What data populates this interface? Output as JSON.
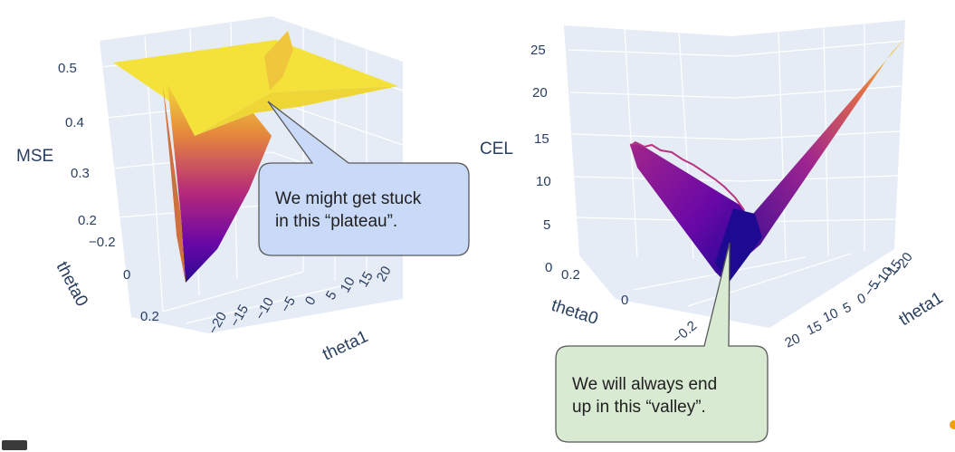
{
  "chart_data": [
    {
      "type": "surface",
      "z_axis_title": "MSE",
      "x_axis_title": "theta0",
      "y_axis_title": "theta1",
      "z_ticks": [
        "0.2",
        "0.3",
        "0.4",
        "0.5"
      ],
      "x_ticks": [
        "−0.2",
        "0",
        "0.2"
      ],
      "y_ticks": [
        "−20",
        "−15",
        "−10",
        "−5",
        "0",
        "5",
        "10",
        "15",
        "20"
      ],
      "z_range": [
        0.2,
        0.5
      ],
      "x_range": [
        -0.2,
        0.2
      ],
      "y_range": [
        -20,
        20
      ],
      "colorscale": [
        "#0d0887",
        "#7e03a8",
        "#cc4778",
        "#f89540",
        "#f0f921"
      ],
      "annotation": "We might get stuck\nin this “plateau”.",
      "annotation_color": "#c9daf8"
    },
    {
      "type": "surface",
      "z_axis_title": "CEL",
      "x_axis_title": "theta0",
      "y_axis_title": "theta1",
      "z_ticks": [
        "0",
        "5",
        "10",
        "15",
        "20",
        "25"
      ],
      "x_ticks": [
        "0.2",
        "0",
        "−0.2"
      ],
      "y_ticks": [
        "20",
        "15",
        "10",
        "5",
        "0",
        "−5",
        "−10",
        "−15",
        "−20"
      ],
      "z_range": [
        0,
        25
      ],
      "x_range": [
        -0.2,
        0.2
      ],
      "y_range": [
        -20,
        20
      ],
      "colorscale": [
        "#0d0887",
        "#7e03a8",
        "#cc4778",
        "#f89540",
        "#f0f921"
      ],
      "annotation": "We will always end\nup in this “valley”.",
      "annotation_color": "#d9ead3"
    }
  ]
}
